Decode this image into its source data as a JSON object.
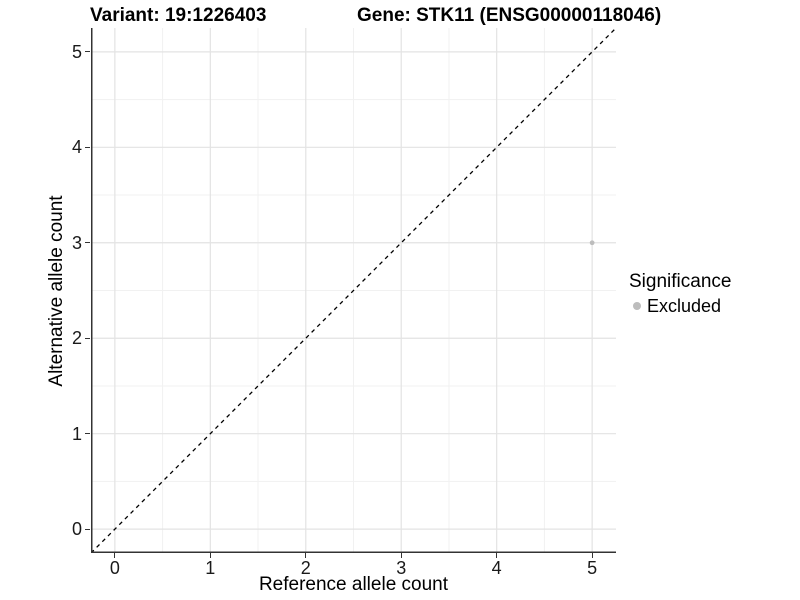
{
  "figure": {
    "title_variant": "Variant: 19:1226403",
    "title_gene": "Gene: STK11 (ENSG00000118046)"
  },
  "chart_data": {
    "type": "scatter",
    "title": "Variant: 19:1226403   |   Gene: STK11 (ENSG00000118046)",
    "xlabel": "Reference allele count",
    "ylabel": "Alternative allele count",
    "xlim": [
      -0.25,
      5.25
    ],
    "ylim": [
      -0.25,
      5.25
    ],
    "xticks": [
      0,
      1,
      2,
      3,
      4,
      5
    ],
    "yticks": [
      0,
      1,
      2,
      3,
      4,
      5
    ],
    "minor_gridlines_x": [
      0.5,
      1.5,
      2.5,
      3.5,
      4.5
    ],
    "minor_gridlines_y": [
      0.5,
      1.5,
      2.5,
      3.5,
      4.5
    ],
    "grid": "major+minor",
    "reference_line": {
      "type": "identity y=x",
      "style": "dashed",
      "color": "#000000"
    },
    "series": [
      {
        "name": "Excluded",
        "color": "#bdbdbd",
        "points": [
          {
            "x": 5,
            "y": 3
          }
        ]
      }
    ],
    "legend": {
      "title": "Significance",
      "position": "right",
      "entries": [
        {
          "label": "Excluded",
          "color": "#bdbdbd"
        }
      ]
    }
  },
  "colors": {
    "background": "#ffffff",
    "grid_major": "#e3e3e3",
    "grid_minor": "#f1f1f1",
    "axis_line": "#333333",
    "tick_mark": "#333333",
    "tick_label": "#1a1a1a",
    "text": "#000000"
  }
}
